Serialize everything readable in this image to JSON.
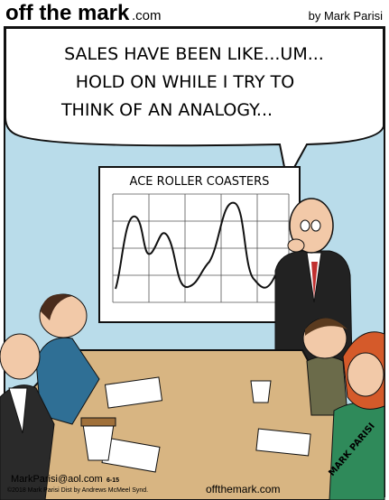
{
  "header": {
    "logo": "off the mark",
    "logo_suffix": ".com",
    "byline": "by Mark Parisi"
  },
  "speech_bubble": {
    "lines": [
      "SALES HAVE BEEN LIKE...UM...",
      "HOLD ON WHILE I TRY TO",
      "THINK OF AN ANALOGY..."
    ]
  },
  "wall_chart": {
    "title": "ACE ROLLER COASTERS"
  },
  "signature": "MARK PARISI",
  "footer": {
    "contact": "MarkParisi@aol.com",
    "date": "6-15",
    "copyright": "©2018 Mark Parisi Dist by Andrews McMeel Synd.",
    "website": "offthemark.com"
  }
}
